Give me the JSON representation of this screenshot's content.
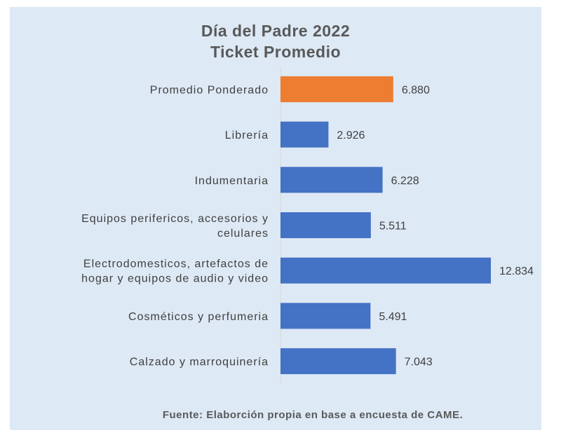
{
  "chart_data": {
    "type": "bar",
    "orientation": "horizontal",
    "title": [
      "Día del Padre 2022",
      "Ticket Promedio"
    ],
    "categories": [
      [
        "Promedio Ponderado"
      ],
      [
        "Librería"
      ],
      [
        "Indumentaria"
      ],
      [
        "Equipos perifericos, accesorios  y",
        "celulares"
      ],
      [
        "Electrodomesticos, artefactos de",
        "hogar y equipos de audio y video"
      ],
      [
        "Cosméticos y perfumeria"
      ],
      [
        "Calzado y marroquinería"
      ]
    ],
    "values": [
      6880,
      2926,
      6228,
      5511,
      12834,
      5491,
      7043
    ],
    "labels": [
      "6.880",
      "2.926",
      "6.228",
      "5.511",
      "12.834",
      "5.491",
      "7.043"
    ],
    "colors": [
      "#ed7d31",
      "#4472c4",
      "#4472c4",
      "#4472c4",
      "#4472c4",
      "#4472c4",
      "#4472c4"
    ],
    "xlim": [
      0,
      12834
    ],
    "grid": false,
    "legend": "none",
    "source": "Fuente: Elaborción propia en base a encuesta de CAME."
  }
}
